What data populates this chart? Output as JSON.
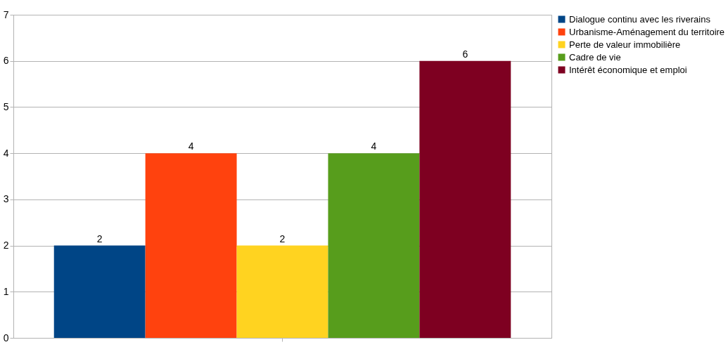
{
  "chart_data": {
    "type": "bar",
    "categories": [
      null
    ],
    "series": [
      {
        "name": "Dialogue continu avec les riverains",
        "color": "#004586",
        "values": [
          2
        ]
      },
      {
        "name": "Urbanisme-Aménagement du territoire",
        "color": "#ff420e",
        "values": [
          4
        ]
      },
      {
        "name": "Perte de valeur immobilière",
        "color": "#ffd320",
        "values": [
          2
        ]
      },
      {
        "name": "Cadre de vie",
        "color": "#579d1c",
        "values": [
          4
        ]
      },
      {
        "name": "Intérêt économique et emploi",
        "color": "#7e0021",
        "values": [
          6
        ]
      }
    ],
    "ylim": [
      0,
      7
    ],
    "yticks": [
      0,
      1,
      2,
      3,
      4,
      5,
      6,
      7
    ],
    "grid": "y",
    "legend": "right",
    "data_labels": true
  }
}
